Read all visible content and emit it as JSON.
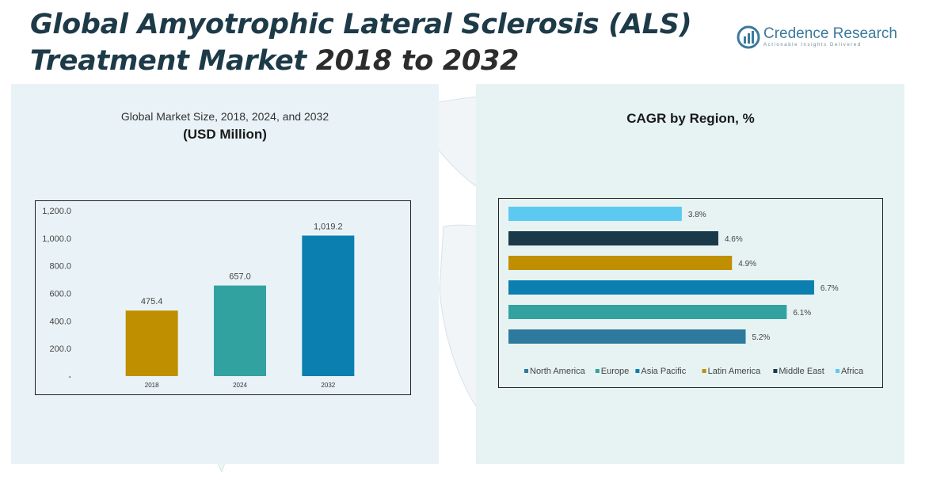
{
  "page": {
    "title_part1": "Global Amyotrophic Lateral Sclerosis (ALS)",
    "title_part2": "Treatment Market ",
    "title_part3": "2018 to 2032",
    "logo_name": "Credence Research",
    "logo_tagline": "Actionable Insights Delivered",
    "logo_icon": "bar-chart-logo-icon"
  },
  "chart_data": [
    {
      "type": "bar",
      "title": "Global Market Size, 2018, 2024, and 2032",
      "subtitle": "(USD Million)",
      "categories": [
        "2018",
        "2024",
        "2032"
      ],
      "values": [
        475.4,
        657.0,
        1019.2
      ],
      "value_labels": [
        "475.4",
        "657.0",
        "1,019.2"
      ],
      "colors": [
        "#bf8f00",
        "#32a2a0",
        "#0a7fb0"
      ],
      "ylim": [
        0,
        1200
      ],
      "yticks": [
        0,
        200,
        400,
        600,
        800,
        1000,
        1200
      ],
      "ytick_labels": [
        "-",
        "200.0",
        "400.0",
        "600.0",
        "800.0",
        "1,000.0",
        "1,200.0"
      ],
      "grid": false
    },
    {
      "type": "bar",
      "orientation": "horizontal",
      "title": "CAGR by Region, %",
      "categories": [
        "North America",
        "Europe",
        "Asia Pacific",
        "Latin America",
        "Middle East",
        "Africa"
      ],
      "values": [
        5.2,
        6.1,
        6.7,
        4.9,
        4.6,
        3.8
      ],
      "value_labels": [
        "5.2%",
        "6.1%",
        "6.7%",
        "4.9%",
        "4.6%",
        "3.8%"
      ],
      "colors": [
        "#2e7a9e",
        "#32a2a0",
        "#0a7fb0",
        "#bf8f00",
        "#1a3a4a",
        "#5ccaf0"
      ],
      "legend_position": "bottom",
      "grid": false
    }
  ]
}
